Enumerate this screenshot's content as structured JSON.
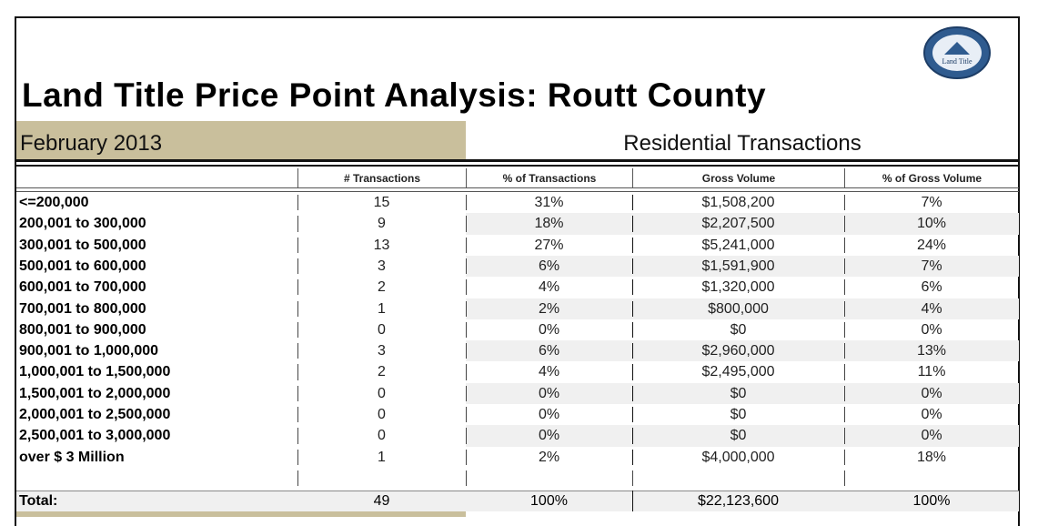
{
  "header": {
    "title": "Land Title Price Point Analysis: Routt County",
    "period": "February 2013",
    "section": "Residential Transactions",
    "logo_text": "Land Title"
  },
  "table": {
    "columns": [
      "# Transactions",
      "% of Transactions",
      "Gross Volume",
      "% of Gross Volume"
    ],
    "rows": [
      [
        "<=200,000",
        "15",
        "31%",
        "$1,508,200",
        "7%"
      ],
      [
        "200,001 to 300,000",
        "9",
        "18%",
        "$2,207,500",
        "10%"
      ],
      [
        "300,001 to 500,000",
        "13",
        "27%",
        "$5,241,000",
        "24%"
      ],
      [
        "500,001 to 600,000",
        "3",
        "6%",
        "$1,591,900",
        "7%"
      ],
      [
        "600,001 to 700,000",
        "2",
        "4%",
        "$1,320,000",
        "6%"
      ],
      [
        "700,001 to 800,000",
        "1",
        "2%",
        "$800,000",
        "4%"
      ],
      [
        "800,001 to 900,000",
        "0",
        "0%",
        "$0",
        "0%"
      ],
      [
        "900,001 to 1,000,000",
        "3",
        "6%",
        "$2,960,000",
        "13%"
      ],
      [
        "1,000,001 to 1,500,000",
        "2",
        "4%",
        "$2,495,000",
        "11%"
      ],
      [
        "1,500,001 to 2,000,000",
        "0",
        "0%",
        "$0",
        "0%"
      ],
      [
        "2,000,001 to 2,500,000",
        "0",
        "0%",
        "$0",
        "0%"
      ],
      [
        "2,500,001 to 3,000,000",
        "0",
        "0%",
        "$0",
        "0%"
      ],
      [
        "over $ 3 Million",
        "1",
        "2%",
        "$4,000,000",
        "18%"
      ]
    ],
    "total": [
      "Total:",
      "49",
      "100%",
      "$22,123,600",
      "100%"
    ]
  }
}
